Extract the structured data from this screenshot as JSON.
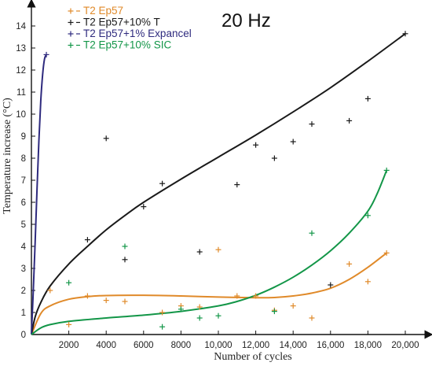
{
  "chart_data": {
    "type": "scatter",
    "annotation": "20 Hz",
    "xlabel": "Number of cycles",
    "ylabel": "Temperature increase (°C)",
    "xlim": [
      0,
      20000
    ],
    "ylim": [
      0,
      14.6
    ],
    "x_ticks": [
      2000,
      4000,
      6000,
      8000,
      10000,
      12000,
      14000,
      16000,
      18000,
      20000
    ],
    "x_tick_labels": [
      "2000",
      "4000",
      "6000",
      "8000",
      "10,000",
      "12,000",
      "14,000",
      "16,000",
      "18,000",
      "20,000"
    ],
    "y_ticks": [
      0,
      1,
      2,
      3,
      4,
      5,
      6,
      7,
      8,
      9,
      10,
      11,
      12,
      13,
      14
    ],
    "y_tick_labels": [
      "0",
      "1",
      "2",
      "3",
      "4",
      "5",
      "6",
      "7",
      "8",
      "9",
      "10",
      "11",
      "12",
      "13",
      "14"
    ],
    "grid": false,
    "legend_position": "top-left",
    "series": [
      {
        "name": "T2 Ep57",
        "color": "#e08a2a",
        "points": [
          [
            1000,
            2.0
          ],
          [
            2000,
            0.45
          ],
          [
            3000,
            1.75
          ],
          [
            4000,
            1.55
          ],
          [
            5000,
            1.5
          ],
          [
            7000,
            1.0
          ],
          [
            8000,
            1.3
          ],
          [
            9000,
            1.25
          ],
          [
            10000,
            3.85
          ],
          [
            11000,
            1.75
          ],
          [
            12000,
            1.75
          ],
          [
            13000,
            1.1
          ],
          [
            14000,
            1.3
          ],
          [
            15000,
            0.75
          ],
          [
            17000,
            3.2
          ],
          [
            18000,
            2.4
          ],
          [
            19000,
            3.7
          ]
        ],
        "fit": [
          [
            0,
            0
          ],
          [
            500,
            0.95
          ],
          [
            1000,
            1.3
          ],
          [
            2000,
            1.6
          ],
          [
            3000,
            1.72
          ],
          [
            4000,
            1.77
          ],
          [
            6000,
            1.78
          ],
          [
            8000,
            1.75
          ],
          [
            10000,
            1.7
          ],
          [
            12000,
            1.67
          ],
          [
            13000,
            1.68
          ],
          [
            14000,
            1.75
          ],
          [
            15000,
            1.88
          ],
          [
            16000,
            2.1
          ],
          [
            17000,
            2.5
          ],
          [
            18000,
            3.05
          ],
          [
            19000,
            3.7
          ]
        ]
      },
      {
        "name": "T2 Ep57+10% T",
        "color": "#1a1a1a",
        "points": [
          [
            3000,
            4.3
          ],
          [
            4000,
            8.9
          ],
          [
            5000,
            3.4
          ],
          [
            6000,
            5.8
          ],
          [
            7000,
            6.85
          ],
          [
            9000,
            3.75
          ],
          [
            11000,
            6.8
          ],
          [
            12000,
            8.6
          ],
          [
            13000,
            8.0
          ],
          [
            14000,
            8.75
          ],
          [
            15000,
            9.55
          ],
          [
            16000,
            2.25
          ],
          [
            17000,
            9.7
          ],
          [
            18000,
            10.7
          ],
          [
            20000,
            13.65
          ]
        ],
        "fit": [
          [
            0,
            0
          ],
          [
            200,
            0.8
          ],
          [
            500,
            1.45
          ],
          [
            1000,
            2.2
          ],
          [
            2000,
            3.2
          ],
          [
            3000,
            4.0
          ],
          [
            4000,
            4.75
          ],
          [
            5000,
            5.4
          ],
          [
            6000,
            6.0
          ],
          [
            8000,
            7.05
          ],
          [
            10000,
            8.05
          ],
          [
            12000,
            9.05
          ],
          [
            14000,
            10.1
          ],
          [
            16000,
            11.2
          ],
          [
            18000,
            12.4
          ],
          [
            20000,
            13.65
          ]
        ]
      },
      {
        "name": "T2 Ep57+1% Expancel",
        "color": "#2e2a7e",
        "points": [
          [
            800,
            12.7
          ]
        ],
        "fit": [
          [
            0,
            0
          ],
          [
            100,
            2.0
          ],
          [
            200,
            4.2
          ],
          [
            300,
            6.6
          ],
          [
            400,
            8.8
          ],
          [
            500,
            10.6
          ],
          [
            600,
            11.8
          ],
          [
            700,
            12.5
          ],
          [
            800,
            12.7
          ]
        ]
      },
      {
        "name": "T2 Ep57+10% SIC",
        "color": "#139648",
        "points": [
          [
            2000,
            2.35
          ],
          [
            5000,
            4.0
          ],
          [
            7000,
            0.35
          ],
          [
            8000,
            1.15
          ],
          [
            9000,
            0.75
          ],
          [
            10000,
            0.85
          ],
          [
            13000,
            1.05
          ],
          [
            15000,
            4.6
          ],
          [
            18000,
            5.4
          ],
          [
            19000,
            7.45
          ]
        ],
        "fit": [
          [
            0,
            0
          ],
          [
            500,
            0.3
          ],
          [
            1000,
            0.45
          ],
          [
            2000,
            0.6
          ],
          [
            4000,
            0.75
          ],
          [
            6000,
            0.88
          ],
          [
            8000,
            1.05
          ],
          [
            10000,
            1.3
          ],
          [
            11000,
            1.5
          ],
          [
            12000,
            1.78
          ],
          [
            13000,
            2.15
          ],
          [
            14000,
            2.6
          ],
          [
            15000,
            3.15
          ],
          [
            16000,
            3.8
          ],
          [
            17000,
            4.6
          ],
          [
            18000,
            5.6
          ],
          [
            18500,
            6.4
          ],
          [
            19000,
            7.45
          ]
        ]
      }
    ]
  }
}
